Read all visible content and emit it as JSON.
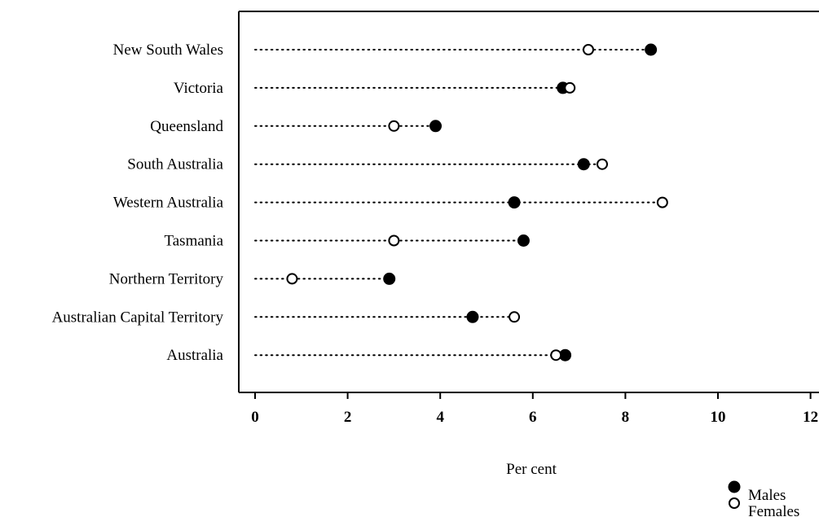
{
  "chart_data": {
    "type": "scatter",
    "title": "",
    "xlabel": "Per cent",
    "ylabel": "",
    "xlim": [
      0,
      12
    ],
    "x_ticks": [
      "0",
      "2",
      "4",
      "6",
      "8",
      "10",
      "12"
    ],
    "x_tick_values": [
      0,
      2,
      4,
      6,
      8,
      10,
      12
    ],
    "categories": [
      "New South Wales",
      "Victoria",
      "Queensland",
      "South Australia",
      "Western Australia",
      "Tasmania",
      "Northern Territory",
      "Australian Capital Territory",
      "Australia"
    ],
    "series": [
      {
        "name": "Males",
        "marker": "filled-circle",
        "values": [
          8.55,
          6.65,
          3.9,
          7.1,
          5.6,
          5.8,
          2.9,
          4.7,
          6.7
        ]
      },
      {
        "name": "Females",
        "marker": "open-circle",
        "values": [
          7.2,
          6.8,
          3.0,
          7.5,
          8.8,
          3.0,
          0.8,
          5.6,
          6.5
        ]
      }
    ],
    "grid": false,
    "legend_position": "bottom-right",
    "colors": {
      "marker": "#000000",
      "background": "#ffffff"
    }
  }
}
